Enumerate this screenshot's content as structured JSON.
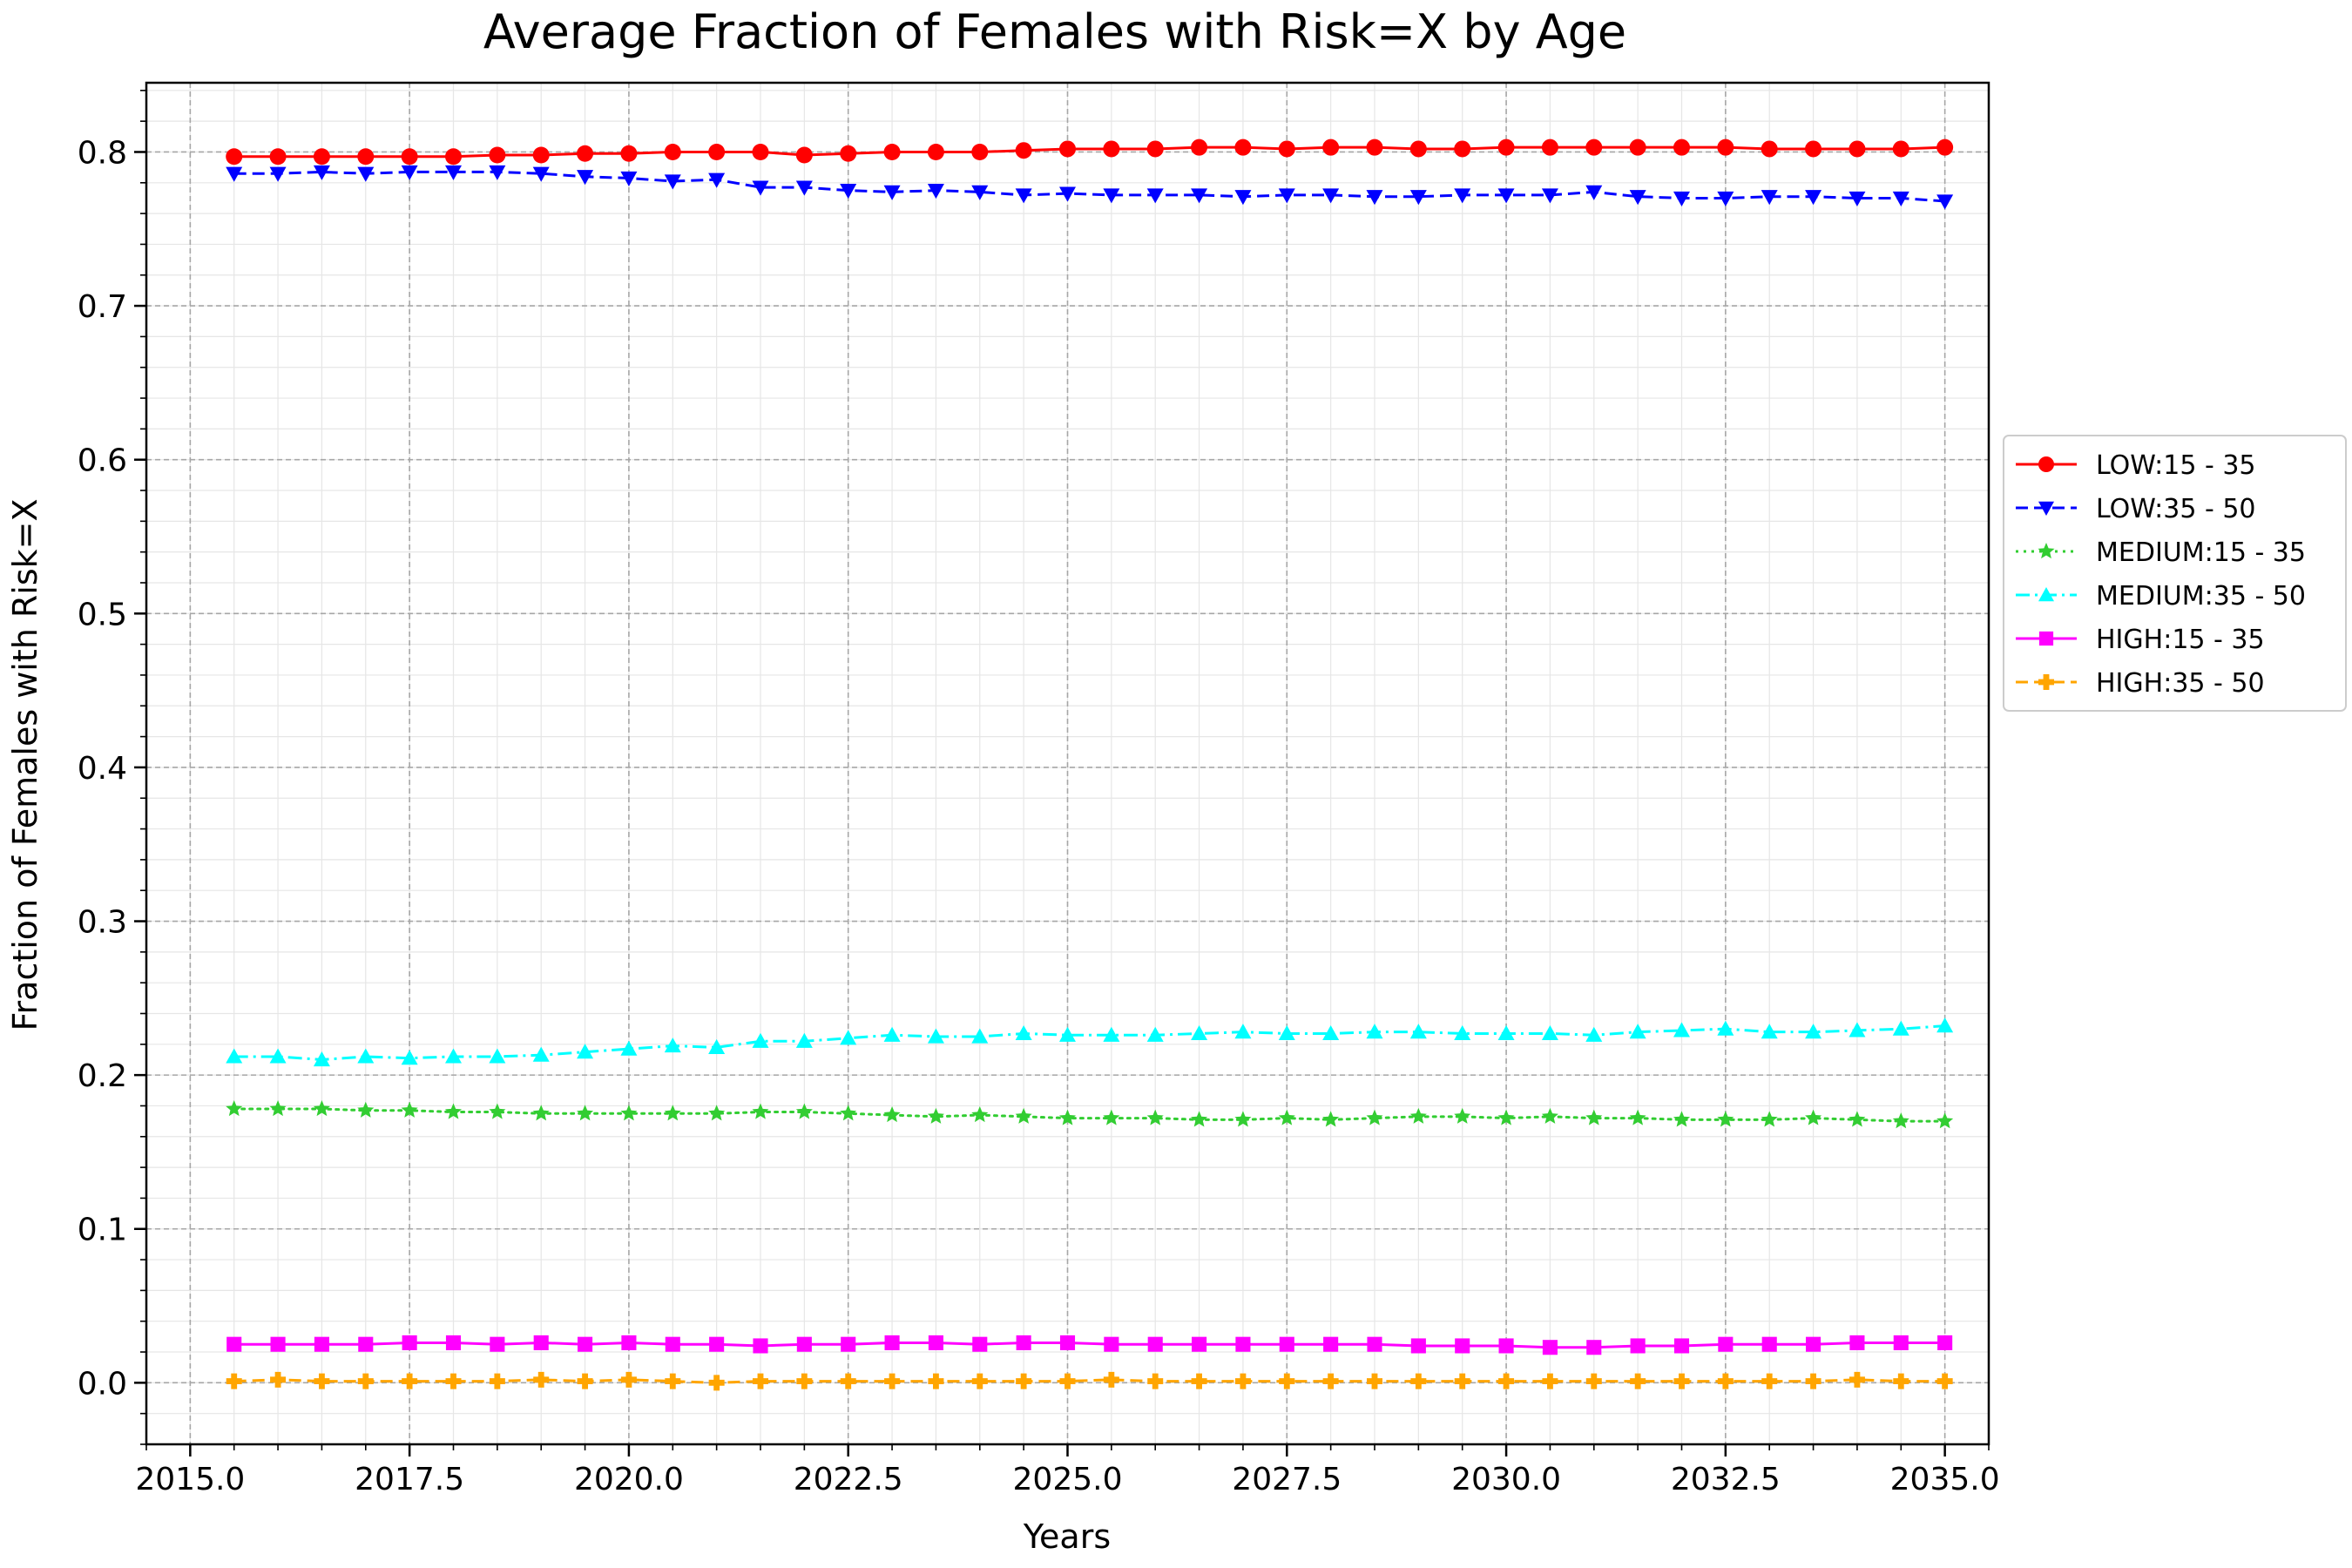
{
  "chart_data": {
    "type": "line",
    "title": "Average Fraction of Females with Risk=X by Age",
    "xlabel": "Years",
    "ylabel": "Fraction of Females with Risk=X",
    "xlim": [
      2014.5,
      2035.5
    ],
    "ylim": [
      -0.04,
      0.845
    ],
    "xticks": [
      2015.0,
      2017.5,
      2020.0,
      2022.5,
      2025.0,
      2027.5,
      2030.0,
      2032.5,
      2035.0
    ],
    "xtick_labels": [
      "2015.0",
      "2017.5",
      "2020.0",
      "2022.5",
      "2025.0",
      "2027.5",
      "2030.0",
      "2032.5",
      "2035.0"
    ],
    "yticks": [
      0.0,
      0.1,
      0.2,
      0.3,
      0.4,
      0.5,
      0.6,
      0.7,
      0.8
    ],
    "ytick_labels": [
      "0.0",
      "0.1",
      "0.2",
      "0.3",
      "0.4",
      "0.5",
      "0.6",
      "0.7",
      "0.8"
    ],
    "grid": true,
    "minor_grid": true,
    "legend_position": "outside-right",
    "x": [
      2015.5,
      2016.0,
      2016.5,
      2017.0,
      2017.5,
      2018.0,
      2018.5,
      2019.0,
      2019.5,
      2020.0,
      2020.5,
      2021.0,
      2021.5,
      2022.0,
      2022.5,
      2023.0,
      2023.5,
      2024.0,
      2024.5,
      2025.0,
      2025.5,
      2026.0,
      2026.5,
      2027.0,
      2027.5,
      2028.0,
      2028.5,
      2029.0,
      2029.5,
      2030.0,
      2030.5,
      2031.0,
      2031.5,
      2032.0,
      2032.5,
      2033.0,
      2033.5,
      2034.0,
      2034.5,
      2035.0
    ],
    "series": [
      {
        "name": "LOW:15 - 35",
        "color": "#ff0000",
        "marker": "circle",
        "linestyle": "solid",
        "values": [
          0.797,
          0.797,
          0.797,
          0.797,
          0.797,
          0.797,
          0.798,
          0.798,
          0.799,
          0.799,
          0.8,
          0.8,
          0.8,
          0.798,
          0.799,
          0.8,
          0.8,
          0.8,
          0.801,
          0.802,
          0.802,
          0.802,
          0.803,
          0.803,
          0.802,
          0.803,
          0.803,
          0.802,
          0.802,
          0.803,
          0.803,
          0.803,
          0.803,
          0.803,
          0.803,
          0.802,
          0.802,
          0.802,
          0.802,
          0.803
        ]
      },
      {
        "name": "LOW:35 - 50",
        "color": "#0000ff",
        "marker": "triangle-down",
        "linestyle": "dashed",
        "values": [
          0.786,
          0.786,
          0.787,
          0.786,
          0.787,
          0.787,
          0.787,
          0.786,
          0.784,
          0.783,
          0.781,
          0.782,
          0.777,
          0.777,
          0.775,
          0.774,
          0.775,
          0.774,
          0.772,
          0.773,
          0.772,
          0.772,
          0.772,
          0.771,
          0.772,
          0.772,
          0.771,
          0.771,
          0.772,
          0.772,
          0.772,
          0.774,
          0.771,
          0.77,
          0.77,
          0.771,
          0.771,
          0.77,
          0.77,
          0.768
        ]
      },
      {
        "name": "MEDIUM:15 - 35",
        "color": "#32cd32",
        "marker": "star",
        "linestyle": "dotted",
        "values": [
          0.178,
          0.178,
          0.178,
          0.177,
          0.177,
          0.176,
          0.176,
          0.175,
          0.175,
          0.175,
          0.175,
          0.175,
          0.176,
          0.176,
          0.175,
          0.174,
          0.173,
          0.174,
          0.173,
          0.172,
          0.172,
          0.172,
          0.171,
          0.171,
          0.172,
          0.171,
          0.172,
          0.173,
          0.173,
          0.172,
          0.173,
          0.172,
          0.172,
          0.171,
          0.171,
          0.171,
          0.172,
          0.171,
          0.17,
          0.17
        ]
      },
      {
        "name": "MEDIUM:35 - 50",
        "color": "#00ffff",
        "marker": "triangle-up",
        "linestyle": "dashdot",
        "values": [
          0.212,
          0.212,
          0.21,
          0.212,
          0.211,
          0.212,
          0.212,
          0.213,
          0.215,
          0.217,
          0.219,
          0.218,
          0.222,
          0.222,
          0.224,
          0.226,
          0.225,
          0.225,
          0.227,
          0.226,
          0.226,
          0.226,
          0.227,
          0.228,
          0.227,
          0.227,
          0.228,
          0.228,
          0.227,
          0.227,
          0.227,
          0.226,
          0.228,
          0.229,
          0.23,
          0.228,
          0.228,
          0.229,
          0.23,
          0.232
        ]
      },
      {
        "name": "HIGH:15 - 35",
        "color": "#ff00ff",
        "marker": "square",
        "linestyle": "solid",
        "values": [
          0.025,
          0.025,
          0.025,
          0.025,
          0.026,
          0.026,
          0.025,
          0.026,
          0.025,
          0.026,
          0.025,
          0.025,
          0.024,
          0.025,
          0.025,
          0.026,
          0.026,
          0.025,
          0.026,
          0.026,
          0.025,
          0.025,
          0.025,
          0.025,
          0.025,
          0.025,
          0.025,
          0.024,
          0.024,
          0.024,
          0.023,
          0.023,
          0.024,
          0.024,
          0.025,
          0.025,
          0.025,
          0.026,
          0.026,
          0.026
        ]
      },
      {
        "name": "HIGH:35 - 50",
        "color": "#ffa500",
        "marker": "plus",
        "linestyle": "dashed",
        "values": [
          0.001,
          0.002,
          0.001,
          0.001,
          0.001,
          0.001,
          0.001,
          0.002,
          0.001,
          0.002,
          0.001,
          0.0,
          0.001,
          0.001,
          0.001,
          0.001,
          0.001,
          0.001,
          0.001,
          0.001,
          0.002,
          0.001,
          0.001,
          0.001,
          0.001,
          0.001,
          0.001,
          0.001,
          0.001,
          0.001,
          0.001,
          0.001,
          0.001,
          0.001,
          0.001,
          0.001,
          0.001,
          0.002,
          0.001,
          0.001
        ]
      }
    ]
  }
}
